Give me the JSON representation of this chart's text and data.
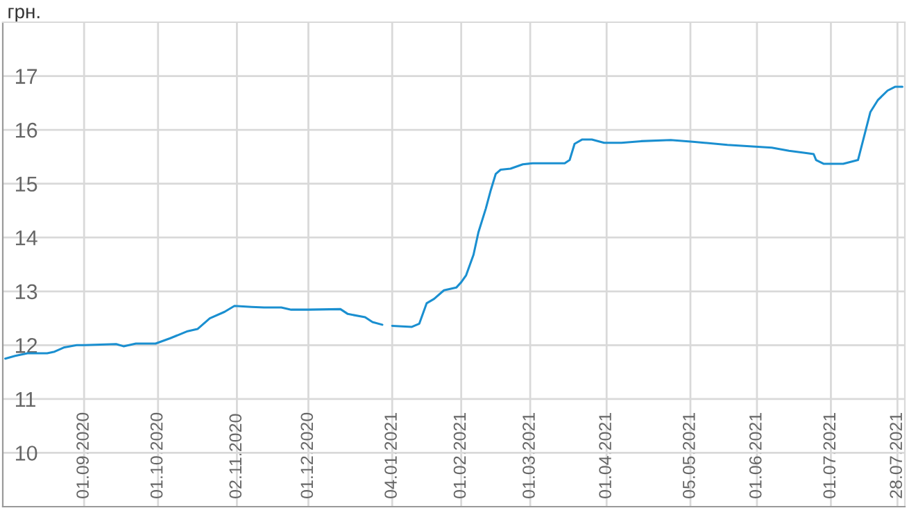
{
  "chart_data": {
    "type": "line",
    "ylabel": "грн.",
    "x": [
      "2020-07-31",
      "2020-08-04",
      "2020-08-09",
      "2020-08-17",
      "2020-08-20",
      "2020-08-24",
      "2020-08-29",
      "2020-09-01",
      "2020-09-14",
      "2020-09-17",
      "2020-09-22",
      "2020-09-30",
      "2020-10-06",
      "2020-10-13",
      "2020-10-17",
      "2020-10-22",
      "2020-10-28",
      "2020-11-01",
      "2020-11-08",
      "2020-11-13",
      "2020-11-20",
      "2020-11-24",
      "2020-12-01",
      "2020-12-14",
      "2020-12-17",
      "2020-12-24",
      "2020-12-27",
      "2020-12-31",
      "2021-01-02",
      "2021-01-04",
      "2021-01-12",
      "2021-01-15",
      "2021-01-18",
      "2021-01-21",
      "2021-01-25",
      "2021-01-30",
      "2021-02-01",
      "2021-02-03",
      "2021-02-06",
      "2021-02-08",
      "2021-02-11",
      "2021-02-13",
      "2021-02-15",
      "2021-02-17",
      "2021-02-21",
      "2021-02-26",
      "2021-03-02",
      "2021-03-15",
      "2021-03-17",
      "2021-03-19",
      "2021-03-22",
      "2021-03-26",
      "2021-03-31",
      "2021-04-07",
      "2021-04-15",
      "2021-04-27",
      "2021-05-06",
      "2021-05-20",
      "2021-06-07",
      "2021-06-14",
      "2021-06-21",
      "2021-06-24",
      "2021-06-25",
      "2021-06-28",
      "2021-07-06",
      "2021-07-12",
      "2021-07-17",
      "2021-07-20",
      "2021-07-24",
      "2021-07-27",
      "2021-07-30"
    ],
    "series": [
      {
        "color": "#1a8fd0",
        "values": [
          11.75,
          11.8,
          11.85,
          11.85,
          11.88,
          11.96,
          12.0,
          12.0,
          12.02,
          11.98,
          12.03,
          12.03,
          12.13,
          12.26,
          12.3,
          12.5,
          12.62,
          12.73,
          12.71,
          12.7,
          12.7,
          12.66,
          12.66,
          12.67,
          12.58,
          12.52,
          12.43,
          12.38,
          null,
          12.36,
          12.34,
          12.4,
          12.78,
          12.86,
          13.02,
          13.07,
          13.17,
          13.3,
          13.68,
          14.1,
          14.54,
          14.88,
          15.18,
          15.26,
          15.28,
          15.36,
          15.38,
          15.38,
          15.44,
          15.74,
          15.82,
          15.82,
          15.76,
          15.76,
          15.79,
          15.81,
          15.78,
          15.72,
          15.67,
          15.61,
          15.57,
          15.55,
          15.44,
          15.37,
          15.37,
          15.44,
          16.33,
          16.55,
          16.73,
          16.8,
          16.8
        ]
      }
    ],
    "xlim": [
      "2020-07-30",
      "2021-07-31"
    ],
    "xticks": [
      {
        "value": "2020-09-01",
        "label": "01.09.2020"
      },
      {
        "value": "2020-10-01",
        "label": "01.10.2020"
      },
      {
        "value": "2020-11-02",
        "label": "02.11.2020"
      },
      {
        "value": "2020-12-01",
        "label": "01.12.2020"
      },
      {
        "value": "2021-01-04",
        "label": "04.01.2021"
      },
      {
        "value": "2021-02-01",
        "label": "01.02.2021"
      },
      {
        "value": "2021-03-01",
        "label": "01.03.2021"
      },
      {
        "value": "2021-04-01",
        "label": "01.04.2021"
      },
      {
        "value": "2021-05-05",
        "label": "05.05.2021"
      },
      {
        "value": "2021-06-01",
        "label": "01.06.2021"
      },
      {
        "value": "2021-07-01",
        "label": "01.07.2021"
      },
      {
        "value": "2021-07-28",
        "label": "28.07.2021"
      }
    ],
    "ylim": [
      9,
      18
    ],
    "yticks": [
      10,
      11,
      12,
      13,
      14,
      15,
      16,
      17
    ],
    "grid": true,
    "legend": false
  }
}
